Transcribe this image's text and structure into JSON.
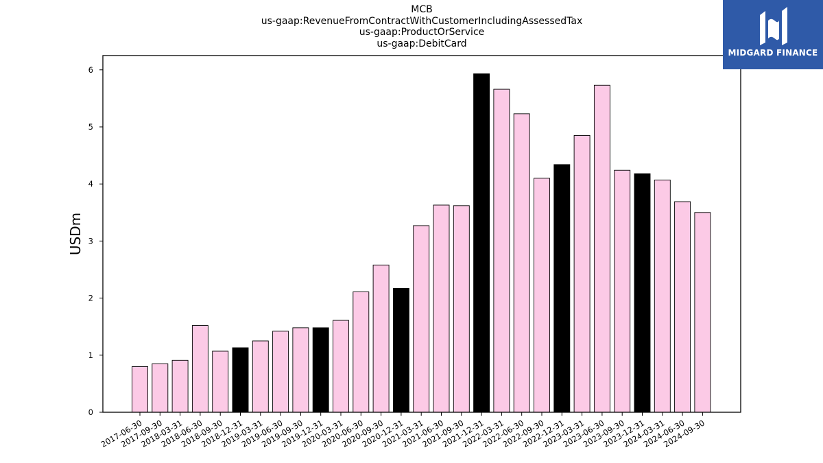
{
  "brand": {
    "name": "MIDGARD FINANCE",
    "bg_color": "#2f5aa8",
    "mark_icon": "mf-monogram-icon"
  },
  "chart_data": {
    "type": "bar",
    "title_lines": [
      "MCB",
      "us-gaap:RevenueFromContractWithCustomerIncludingAssessedTax",
      "us-gaap:ProductOrService",
      "us-gaap:DebitCard"
    ],
    "xlabel": "",
    "ylabel": "USDm",
    "ylim": [
      0,
      6.25
    ],
    "yticks": [
      0,
      1,
      2,
      3,
      4,
      5,
      6
    ],
    "grid": false,
    "legend": "none",
    "colors": {
      "quarter": "#fccae6",
      "year_end": "#000000",
      "edge": "#000000"
    },
    "categories": [
      "2017-06-30",
      "2017-09-30",
      "2018-03-31",
      "2018-06-30",
      "2018-09-30",
      "2018-12-31",
      "2019-03-31",
      "2019-06-30",
      "2019-09-30",
      "2019-12-31",
      "2020-03-31",
      "2020-06-30",
      "2020-09-30",
      "2020-12-31",
      "2021-03-31",
      "2021-06-30",
      "2021-09-30",
      "2021-12-31",
      "2022-03-31",
      "2022-06-30",
      "2022-09-30",
      "2022-12-31",
      "2023-03-31",
      "2023-06-30",
      "2023-09-30",
      "2023-12-31",
      "2024-03-31",
      "2024-06-30",
      "2024-09-30"
    ],
    "values": [
      0.8,
      0.85,
      0.91,
      1.52,
      1.07,
      1.13,
      1.25,
      1.42,
      1.48,
      1.48,
      1.61,
      2.11,
      2.58,
      2.17,
      3.27,
      3.63,
      3.62,
      5.93,
      5.66,
      5.23,
      4.1,
      4.34,
      4.85,
      5.73,
      4.24,
      4.18,
      4.07,
      3.69,
      3.5
    ],
    "highlight": [
      false,
      false,
      false,
      false,
      false,
      true,
      false,
      false,
      false,
      true,
      false,
      false,
      false,
      true,
      false,
      false,
      false,
      true,
      false,
      false,
      false,
      true,
      false,
      false,
      false,
      true,
      false,
      false,
      false
    ]
  }
}
